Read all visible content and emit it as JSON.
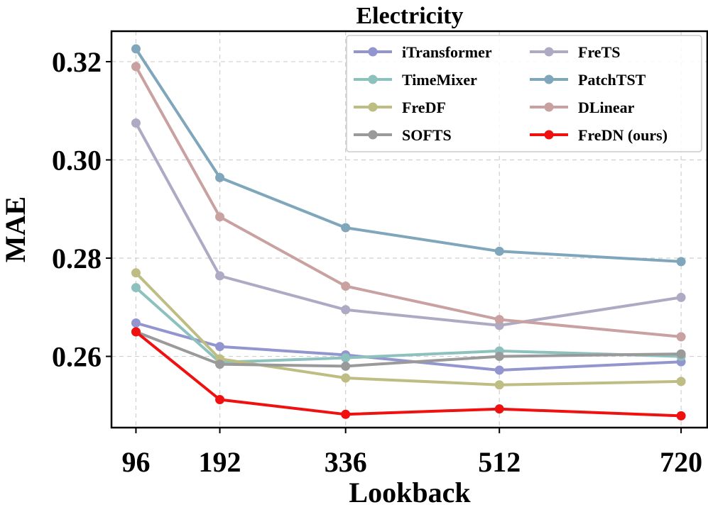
{
  "chart_data": {
    "type": "line",
    "title": "Electricity",
    "xlabel": "Lookback",
    "ylabel": "MAE",
    "x": [
      96,
      192,
      336,
      512,
      720
    ],
    "x_tick_labels": [
      "96",
      "192",
      "336",
      "512",
      "720"
    ],
    "y_ticks": [
      0.26,
      0.28,
      0.3,
      0.32
    ],
    "y_tick_labels": [
      "0.26",
      "0.28",
      "0.30",
      "0.32"
    ],
    "xlim": [
      68,
      750
    ],
    "ylim": [
      0.2455,
      0.3262
    ],
    "grid": true,
    "legend_position": "top-right",
    "series": [
      {
        "name": "iTransformer",
        "color": "#9395cf",
        "values": [
          0.2668,
          0.262,
          0.2603,
          0.2572,
          0.2589
        ]
      },
      {
        "name": "TimeMixer",
        "color": "#8cc1be",
        "values": [
          0.274,
          0.2588,
          0.2597,
          0.2611,
          0.26
        ]
      },
      {
        "name": "FreDF",
        "color": "#bebd84",
        "values": [
          0.277,
          0.2595,
          0.2556,
          0.2542,
          0.2549
        ]
      },
      {
        "name": "SOFTS",
        "color": "#9a9a9a",
        "values": [
          0.265,
          0.2584,
          0.258,
          0.26,
          0.2605
        ]
      },
      {
        "name": "FreTS",
        "color": "#aeaac4",
        "values": [
          0.3075,
          0.2764,
          0.2695,
          0.2663,
          0.272
        ]
      },
      {
        "name": "PatchTST",
        "color": "#7fa6ba",
        "values": [
          0.3226,
          0.2964,
          0.2862,
          0.2814,
          0.2793
        ]
      },
      {
        "name": "DLinear",
        "color": "#c9a1a1",
        "values": [
          0.319,
          0.2884,
          0.2743,
          0.2675,
          0.264
        ]
      },
      {
        "name": "FreDN (ours)",
        "color": "#f01010",
        "values": [
          0.265,
          0.2512,
          0.2482,
          0.2493,
          0.2479
        ]
      }
    ]
  }
}
